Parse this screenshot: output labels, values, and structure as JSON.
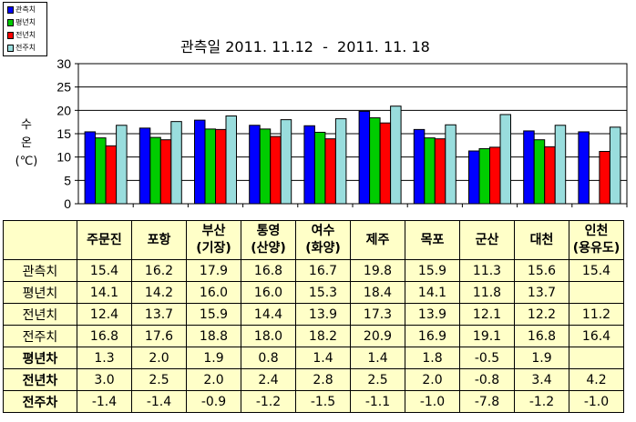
{
  "legend": [
    {
      "label": "관측치",
      "color": "#0000ff"
    },
    {
      "label": "평년치",
      "color": "#00cc00"
    },
    {
      "label": "전년치",
      "color": "#ff0000"
    },
    {
      "label": "전주치",
      "color": "#99dddd"
    }
  ],
  "chart_data": {
    "type": "bar",
    "title": "관측일 2011. 11.12  -  2011. 11. 18",
    "ylabel": "수\n온\n(℃)",
    "ylim": [
      0,
      30
    ],
    "yticks": [
      "0",
      "5",
      "10",
      "15",
      "20",
      "25",
      "30"
    ],
    "grid": true,
    "categories": [
      "주문진",
      "포항",
      "부산(기장)",
      "통영(산양)",
      "여수(화양)",
      "제주",
      "목포",
      "군산",
      "대천",
      "인천(용유도)"
    ],
    "series": [
      {
        "name": "관측치",
        "color": "#0000ff",
        "values": [
          15.4,
          16.2,
          17.9,
          16.8,
          16.7,
          19.8,
          15.9,
          11.3,
          15.6,
          15.4
        ]
      },
      {
        "name": "평년치",
        "color": "#00cc00",
        "values": [
          14.1,
          14.2,
          16.0,
          16.0,
          15.3,
          18.4,
          14.1,
          11.8,
          13.7,
          null
        ]
      },
      {
        "name": "전년치",
        "color": "#ff0000",
        "values": [
          12.4,
          13.7,
          15.9,
          14.4,
          13.9,
          17.3,
          13.9,
          12.1,
          12.2,
          11.2
        ]
      },
      {
        "name": "전주치",
        "color": "#99dddd",
        "values": [
          16.8,
          17.6,
          18.8,
          18.0,
          18.2,
          20.9,
          16.9,
          19.1,
          16.8,
          16.4
        ]
      }
    ]
  },
  "table": {
    "headers": [
      [
        "주문진"
      ],
      [
        "포항"
      ],
      [
        "부산",
        "(기장)"
      ],
      [
        "통영",
        "(산양)"
      ],
      [
        "여수",
        "(화양)"
      ],
      [
        "제주"
      ],
      [
        "목포"
      ],
      [
        "군산"
      ],
      [
        "대천"
      ],
      [
        "인천",
        "(용유도)"
      ]
    ],
    "rows": [
      {
        "label": "관측치",
        "bold": false,
        "cells": [
          "15.4",
          "16.2",
          "17.9",
          "16.8",
          "16.7",
          "19.8",
          "15.9",
          "11.3",
          "15.6",
          "15.4"
        ]
      },
      {
        "label": "평년치",
        "bold": false,
        "cells": [
          "14.1",
          "14.2",
          "16.0",
          "16.0",
          "15.3",
          "18.4",
          "14.1",
          "11.8",
          "13.7",
          ""
        ]
      },
      {
        "label": "전년치",
        "bold": false,
        "cells": [
          "12.4",
          "13.7",
          "15.9",
          "14.4",
          "13.9",
          "17.3",
          "13.9",
          "12.1",
          "12.2",
          "11.2"
        ]
      },
      {
        "label": "전주치",
        "bold": false,
        "cells": [
          "16.8",
          "17.6",
          "18.8",
          "18.0",
          "18.2",
          "20.9",
          "16.9",
          "19.1",
          "16.8",
          "16.4"
        ]
      },
      {
        "label": "평년차",
        "bold": true,
        "cells": [
          "1.3",
          "2.0",
          "1.9",
          "0.8",
          "1.4",
          "1.4",
          "1.8",
          "-0.5",
          "1.9",
          ""
        ]
      },
      {
        "label": "전년차",
        "bold": true,
        "cells": [
          "3.0",
          "2.5",
          "2.0",
          "2.4",
          "2.8",
          "2.5",
          "2.0",
          "-0.8",
          "3.4",
          "4.2"
        ]
      },
      {
        "label": "전주차",
        "bold": true,
        "cells": [
          "-1.4",
          "-1.4",
          "-0.9",
          "-1.2",
          "-1.5",
          "-1.1",
          "-1.0",
          "-7.8",
          "-1.2",
          "-1.0"
        ]
      }
    ]
  }
}
